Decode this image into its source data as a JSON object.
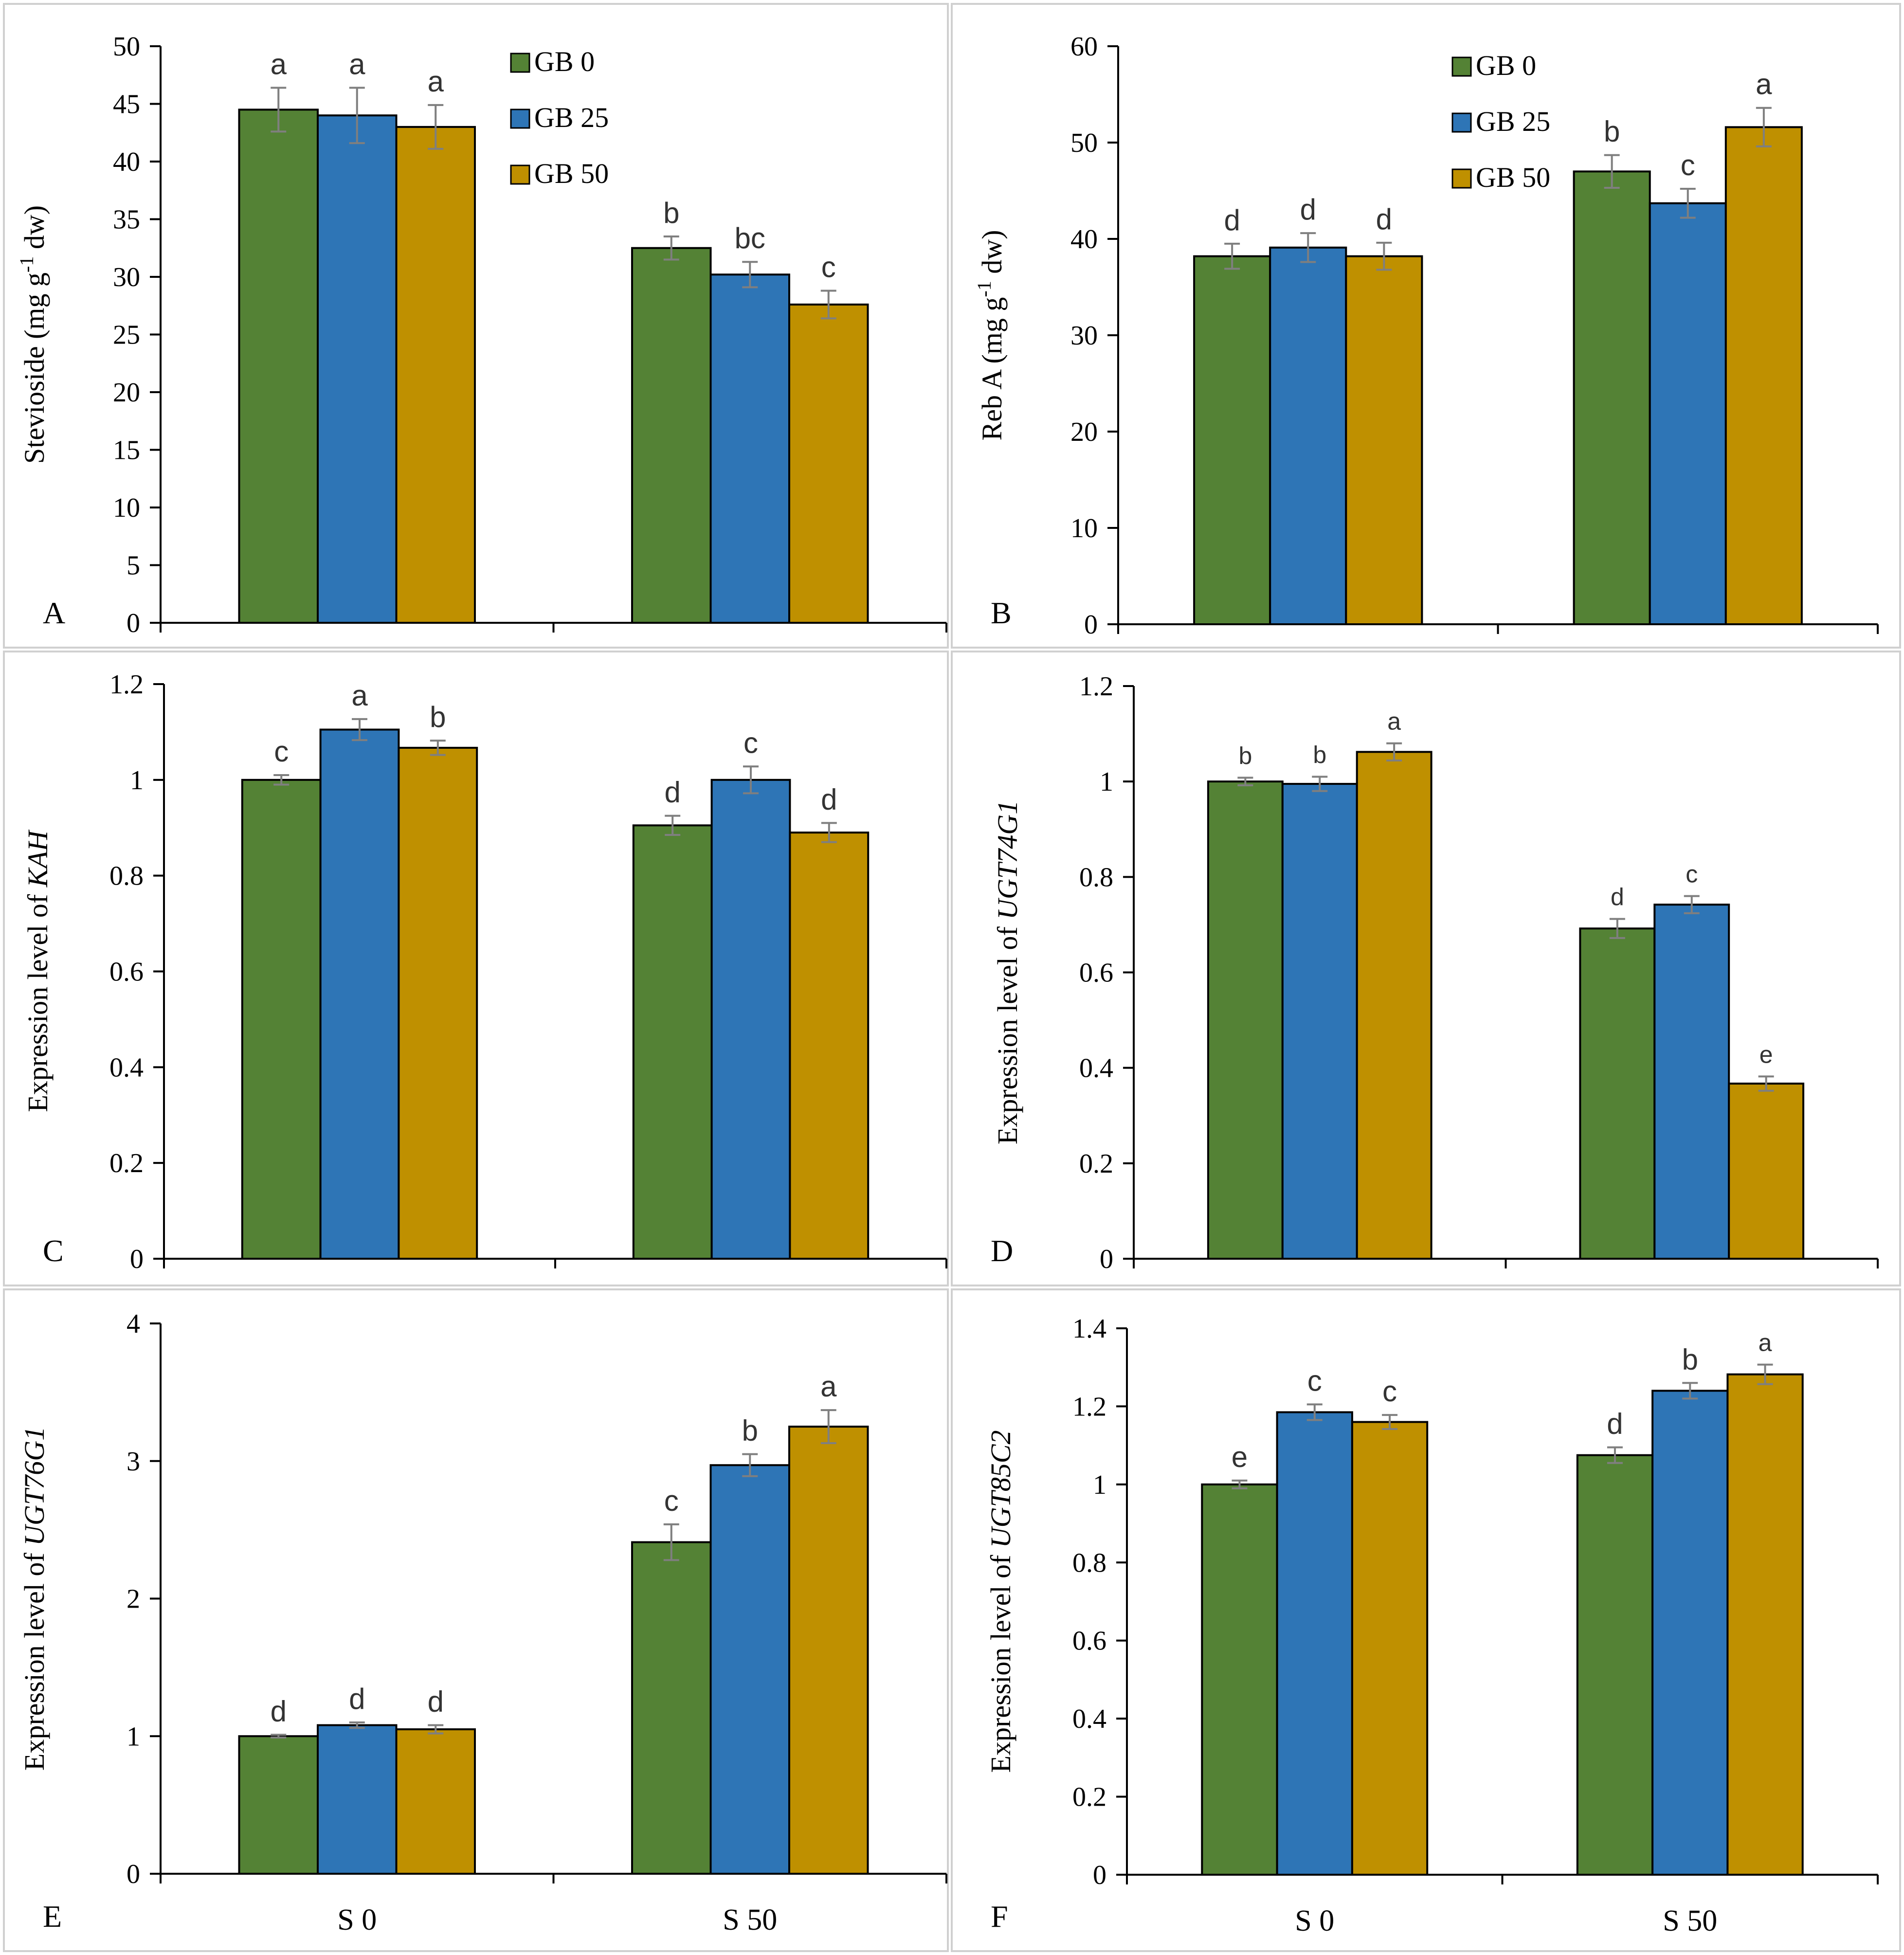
{
  "colors": {
    "gb0": "#548235",
    "gb25": "#2E75B6",
    "gb50": "#BF9000",
    "frame": "#d0d0d0",
    "error": "#7f7f7f"
  },
  "series_names": [
    "GB 0",
    "GB 25",
    "GB 50"
  ],
  "chart_data": [
    {
      "type": "bar",
      "panel": "A",
      "ylabel": {
        "pre": "Stevioside (mg g",
        "sup": "-1",
        "post": " dw)"
      },
      "ylim": [
        0,
        50
      ],
      "yticks": [
        0,
        5,
        10,
        15,
        20,
        25,
        30,
        35,
        40,
        45,
        50
      ],
      "categories": [
        "S 0",
        "S 50"
      ],
      "show_categories": false,
      "legend": true,
      "series": [
        {
          "name": "GB 0",
          "values": [
            44.5,
            32.5
          ],
          "errors": [
            1.9,
            1.0
          ],
          "letters": [
            "a",
            "b"
          ]
        },
        {
          "name": "GB 25",
          "values": [
            44.0,
            30.2
          ],
          "errors": [
            2.4,
            1.1
          ],
          "letters": [
            "a",
            "bc"
          ]
        },
        {
          "name": "GB 50",
          "values": [
            43.0,
            27.6
          ],
          "errors": [
            1.9,
            1.2
          ],
          "letters": [
            "a",
            "c"
          ]
        }
      ]
    },
    {
      "type": "bar",
      "panel": "B",
      "ylabel": {
        "pre": "Reb A (mg g",
        "sup": "-1",
        "post": " dw)"
      },
      "ylim": [
        0,
        60
      ],
      "yticks": [
        0,
        10,
        20,
        30,
        40,
        50,
        60
      ],
      "categories": [
        "S 0",
        "S 50"
      ],
      "show_categories": false,
      "legend": true,
      "series": [
        {
          "name": "GB 0",
          "values": [
            38.2,
            47.0
          ],
          "errors": [
            1.3,
            1.7
          ],
          "letters": [
            "d",
            "b"
          ]
        },
        {
          "name": "GB 25",
          "values": [
            39.1,
            43.7
          ],
          "errors": [
            1.5,
            1.5
          ],
          "letters": [
            "d",
            "c"
          ]
        },
        {
          "name": "GB 50",
          "values": [
            38.2,
            51.6
          ],
          "errors": [
            1.4,
            2.0
          ],
          "letters": [
            "d",
            "a"
          ]
        }
      ]
    },
    {
      "type": "bar",
      "panel": "C",
      "ylabel": {
        "pre": "Expression level of ",
        "gene": "KAH"
      },
      "ylim": [
        0,
        1.2
      ],
      "yticks": [
        0,
        0.2,
        0.4,
        0.6,
        0.8,
        1,
        1.2
      ],
      "categories": [
        "S 0",
        "S 50"
      ],
      "show_categories": false,
      "legend": false,
      "series": [
        {
          "name": "GB 0",
          "values": [
            1.0,
            0.905
          ],
          "errors": [
            0.01,
            0.02
          ],
          "letters": [
            "c",
            "d"
          ]
        },
        {
          "name": "GB 25",
          "values": [
            1.105,
            1.0
          ],
          "errors": [
            0.022,
            0.028
          ],
          "letters": [
            "a",
            "c"
          ]
        },
        {
          "name": "GB 50",
          "values": [
            1.067,
            0.89
          ],
          "errors": [
            0.015,
            0.02
          ],
          "letters": [
            "b",
            "d"
          ]
        }
      ]
    },
    {
      "type": "bar",
      "panel": "D",
      "ylabel": {
        "pre": "Expression level of ",
        "gene": "UGT74G1"
      },
      "ylim": [
        0,
        1.2
      ],
      "yticks": [
        0,
        0.2,
        0.4,
        0.6,
        0.8,
        1,
        1.2
      ],
      "categories": [
        "S 0",
        "S 50"
      ],
      "show_categories": false,
      "legend": false,
      "series": [
        {
          "name": "GB 0",
          "values": [
            1.0,
            0.692
          ],
          "errors": [
            0.008,
            0.02
          ],
          "letters": [
            "b",
            "d"
          ]
        },
        {
          "name": "GB 25",
          "values": [
            0.995,
            0.742
          ],
          "errors": [
            0.015,
            0.018
          ],
          "letters": [
            "b",
            "c"
          ]
        },
        {
          "name": "GB 50",
          "values": [
            1.062,
            0.367
          ],
          "errors": [
            0.018,
            0.015
          ],
          "letters": [
            "a",
            "e"
          ]
        }
      ]
    },
    {
      "type": "bar",
      "panel": "E",
      "ylabel": {
        "pre": "Expression level of ",
        "gene": "UGT76G1"
      },
      "ylim": [
        0,
        4
      ],
      "yticks": [
        0,
        1,
        2,
        3,
        4
      ],
      "categories": [
        "S 0",
        "S 50"
      ],
      "show_categories": true,
      "legend": false,
      "series": [
        {
          "name": "GB 0",
          "values": [
            1.0,
            2.41
          ],
          "errors": [
            0.01,
            0.13
          ],
          "letters": [
            "d",
            "c"
          ]
        },
        {
          "name": "GB 25",
          "values": [
            1.08,
            2.97
          ],
          "errors": [
            0.02,
            0.08
          ],
          "letters": [
            "d",
            "b"
          ]
        },
        {
          "name": "GB 50",
          "values": [
            1.05,
            3.25
          ],
          "errors": [
            0.03,
            0.12
          ],
          "letters": [
            "d",
            "a"
          ]
        }
      ]
    },
    {
      "type": "bar",
      "panel": "F",
      "ylabel": {
        "pre": "Expression level of ",
        "gene": "UGT85C2"
      },
      "ylim": [
        0,
        1.4
      ],
      "yticks": [
        0,
        0.2,
        0.4,
        0.6,
        0.8,
        1,
        1.2,
        1.4
      ],
      "categories": [
        "S 0",
        "S 50"
      ],
      "show_categories": true,
      "legend": false,
      "series": [
        {
          "name": "GB 0",
          "values": [
            1.0,
            1.075
          ],
          "errors": [
            0.01,
            0.02
          ],
          "letters": [
            "e",
            "d"
          ]
        },
        {
          "name": "GB 25",
          "values": [
            1.185,
            1.24
          ],
          "errors": [
            0.02,
            0.02
          ],
          "letters": [
            "c",
            "b"
          ]
        },
        {
          "name": "GB 50",
          "values": [
            1.16,
            1.282
          ],
          "errors": [
            0.018,
            0.025
          ],
          "letters": [
            "c",
            "a"
          ]
        }
      ]
    }
  ]
}
